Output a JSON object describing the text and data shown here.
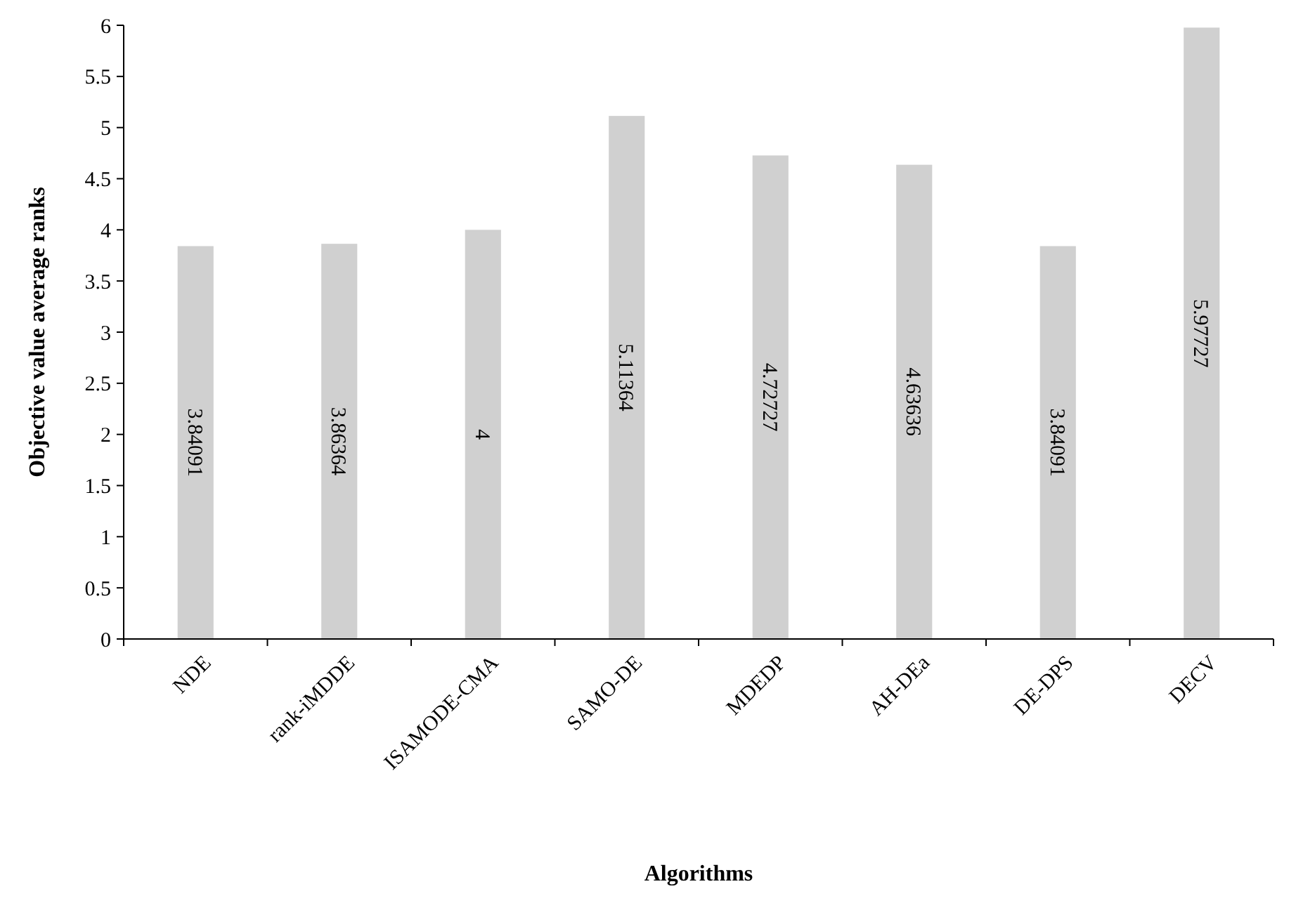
{
  "chart_data": {
    "type": "bar",
    "xlabel": "Algorithms",
    "ylabel": "Objective value average ranks",
    "categories": [
      "NDE",
      "rank-iMDDE",
      "ISAMODE-CMA",
      "SAMO-DE",
      "MDEDP",
      "AH-DEa",
      "DE-DPS",
      "DECV"
    ],
    "values": [
      3.84091,
      3.86364,
      4,
      5.11364,
      4.72727,
      4.63636,
      3.84091,
      5.97727
    ],
    "color": "#d0d0d0",
    "ylim": [
      0,
      6
    ],
    "yticks": [
      0,
      0.5,
      1,
      1.5,
      2,
      2.5,
      3,
      3.5,
      4,
      4.5,
      5,
      5.5,
      6
    ],
    "grid": false,
    "data_labels": true
  }
}
